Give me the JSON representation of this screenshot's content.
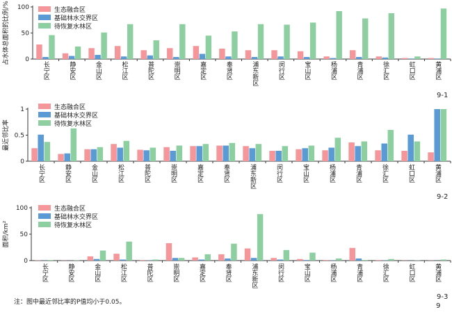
{
  "figure": {
    "note": "注：图中最近邻比率的P值均小于0.05。",
    "page_label": "9"
  },
  "legend": [
    "生态融合区",
    "基础林水交界区",
    "待恢复水林区"
  ],
  "colors": {
    "series": [
      "#F4969A",
      "#5B9BD5",
      "#8DCFA0"
    ],
    "axis": "#333333"
  },
  "chart_data": [
    {
      "type": "bar",
      "panel_label": "9-1",
      "ylabel": "占水体总面积的比例/%",
      "ylim": [
        0,
        100
      ],
      "yticks": [
        0,
        50,
        100
      ],
      "categories": [
        "长宁区",
        "静安区",
        "金山区",
        "松江区",
        "普陀区",
        "崇明区",
        "嘉定区",
        "奉贤区",
        "浦东新区",
        "闵行区",
        "宝山区",
        "杨浦区",
        "青浦区",
        "徐汇区",
        "虹口区",
        "黄浦区"
      ],
      "series": [
        {
          "name": "生态融合区",
          "values": [
            28,
            11,
            21,
            25,
            17,
            21,
            25,
            20,
            17,
            17,
            15,
            5,
            17,
            5,
            2,
            2
          ]
        },
        {
          "name": "基础林水交界区",
          "values": [
            4,
            6,
            8,
            5,
            7,
            4,
            10,
            5,
            4,
            5,
            4,
            2,
            4,
            3,
            1,
            1
          ]
        },
        {
          "name": "待恢复水林区",
          "values": [
            46,
            24,
            51,
            67,
            36,
            67,
            45,
            53,
            67,
            66,
            70,
            92,
            78,
            88,
            5,
            97
          ]
        }
      ]
    },
    {
      "type": "bar",
      "panel_label": "9-2",
      "ylabel": "最近邻比率",
      "ylim": [
        0,
        1.0
      ],
      "yticks": [
        0,
        0.5,
        1.0
      ],
      "categories": [
        "长宁区",
        "静安区",
        "金山区",
        "松江区",
        "普陀区",
        "崇明区",
        "嘉定区",
        "奉贤区",
        "浦东新区",
        "闵行区",
        "宝山区",
        "杨浦区",
        "青浦区",
        "徐汇区",
        "虹口区",
        "黄浦区"
      ],
      "series": [
        {
          "name": "生态融合区",
          "values": [
            0.25,
            0.14,
            0.23,
            0.33,
            0.22,
            0.27,
            0.29,
            0.3,
            0.29,
            0.2,
            0.23,
            0.21,
            0.36,
            0.21,
            0.2,
            0.17
          ]
        },
        {
          "name": "基础林水交界区",
          "values": [
            0.51,
            0.15,
            0.23,
            0.26,
            0.21,
            0.2,
            0.29,
            0.3,
            0.25,
            0.2,
            0.25,
            0.26,
            0.29,
            0.34,
            0.51,
            1.0
          ]
        },
        {
          "name": "待恢复水林区",
          "values": [
            0.37,
            0.63,
            0.27,
            0.39,
            0.26,
            0.3,
            0.33,
            0.35,
            0.33,
            0.29,
            0.3,
            0.45,
            0.38,
            0.6,
            0.38,
            1.0
          ]
        }
      ]
    },
    {
      "type": "bar",
      "panel_label": "9-3",
      "ylabel": "面积/km²",
      "ylim": [
        0,
        100
      ],
      "yticks": [
        0,
        50,
        100
      ],
      "categories": [
        "长宁区",
        "静安区",
        "金山区",
        "松江区",
        "普陀区",
        "崇明区",
        "嘉定区",
        "奉贤区",
        "浦东新区",
        "闵行区",
        "宝山区",
        "杨浦区",
        "青浦区",
        "徐汇区",
        "虹口区",
        "黄浦区"
      ],
      "series": [
        {
          "name": "生态融合区",
          "values": [
            0.5,
            0.3,
            8,
            13,
            1,
            33,
            6,
            12,
            23,
            5,
            3,
            1,
            24,
            1,
            0.3,
            0.3
          ]
        },
        {
          "name": "基础林水交界区",
          "values": [
            0.3,
            0.2,
            3,
            2,
            0.5,
            5,
            2,
            4,
            5,
            2,
            1,
            0.5,
            4,
            0.5,
            0.2,
            0.2
          ]
        },
        {
          "name": "待恢复水林区",
          "values": [
            1,
            0.5,
            19,
            36,
            2,
            5,
            12,
            32,
            88,
            20,
            15,
            4,
            1,
            3,
            0.5,
            2
          ]
        }
      ]
    }
  ]
}
